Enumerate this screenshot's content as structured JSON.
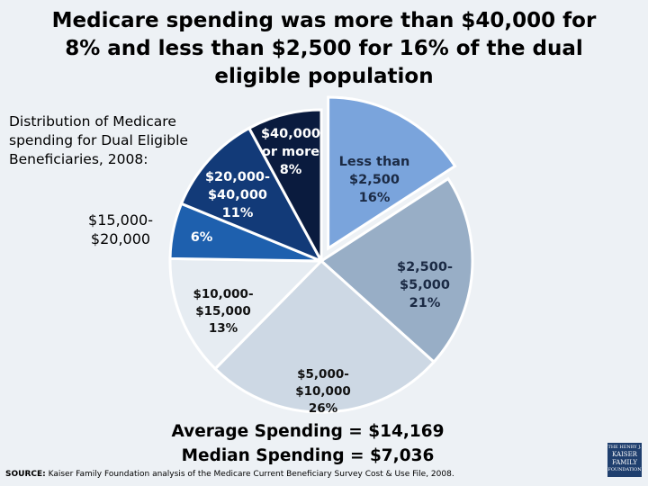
{
  "title": {
    "lines": [
      "Medicare spending was more than $40,000 for",
      "8% and less than $2,500 for 16% of the dual",
      "eligible population"
    ]
  },
  "subtitle": {
    "lines": [
      "Distribution of Medicare",
      "spending for Dual Eligible",
      "Beneficiaries, 2008:"
    ]
  },
  "chart_data": {
    "type": "pie",
    "slices": [
      {
        "label": "Less than $2,500",
        "value": 16,
        "display": "16%",
        "color": "#7aa4dc",
        "text_color": "#1b2a44",
        "exploded": true
      },
      {
        "label": "$2,500-$5,000",
        "value": 21,
        "display": "21%",
        "color": "#98aec6",
        "text_color": "#1b2a44"
      },
      {
        "label": "$5,000-$10,000",
        "value": 26,
        "display": "26%",
        "color": "#cdd8e4",
        "text_color": "#111111"
      },
      {
        "label": "$10,000-$15,000",
        "value": 13,
        "display": "13%",
        "color": "#e6ecf2",
        "text_color": "#111111"
      },
      {
        "label": "$15,000-$20,000",
        "value": 6,
        "display": "6%",
        "color": "#1e60ae",
        "text_color": "#ffffff"
      },
      {
        "label": "$20,000-$40,000",
        "value": 11,
        "display": "11%",
        "color": "#123a78",
        "text_color": "#ffffff"
      },
      {
        "label": "$40,000 or more",
        "value": 8,
        "display": "8%",
        "color": "#0a1b3e",
        "text_color": "#ffffff"
      }
    ]
  },
  "summary": {
    "average": "Average Spending = $14,169",
    "median": "Median Spending = $7,036"
  },
  "source": {
    "label": "SOURCE:",
    "text": "Kaiser Family Foundation analysis of the Medicare Current Beneficiary Survey Cost & Use File, 2008."
  },
  "logo": {
    "lines": [
      "THE HENRY J.",
      "KAISER",
      "FAMILY",
      "FOUNDATION"
    ]
  }
}
